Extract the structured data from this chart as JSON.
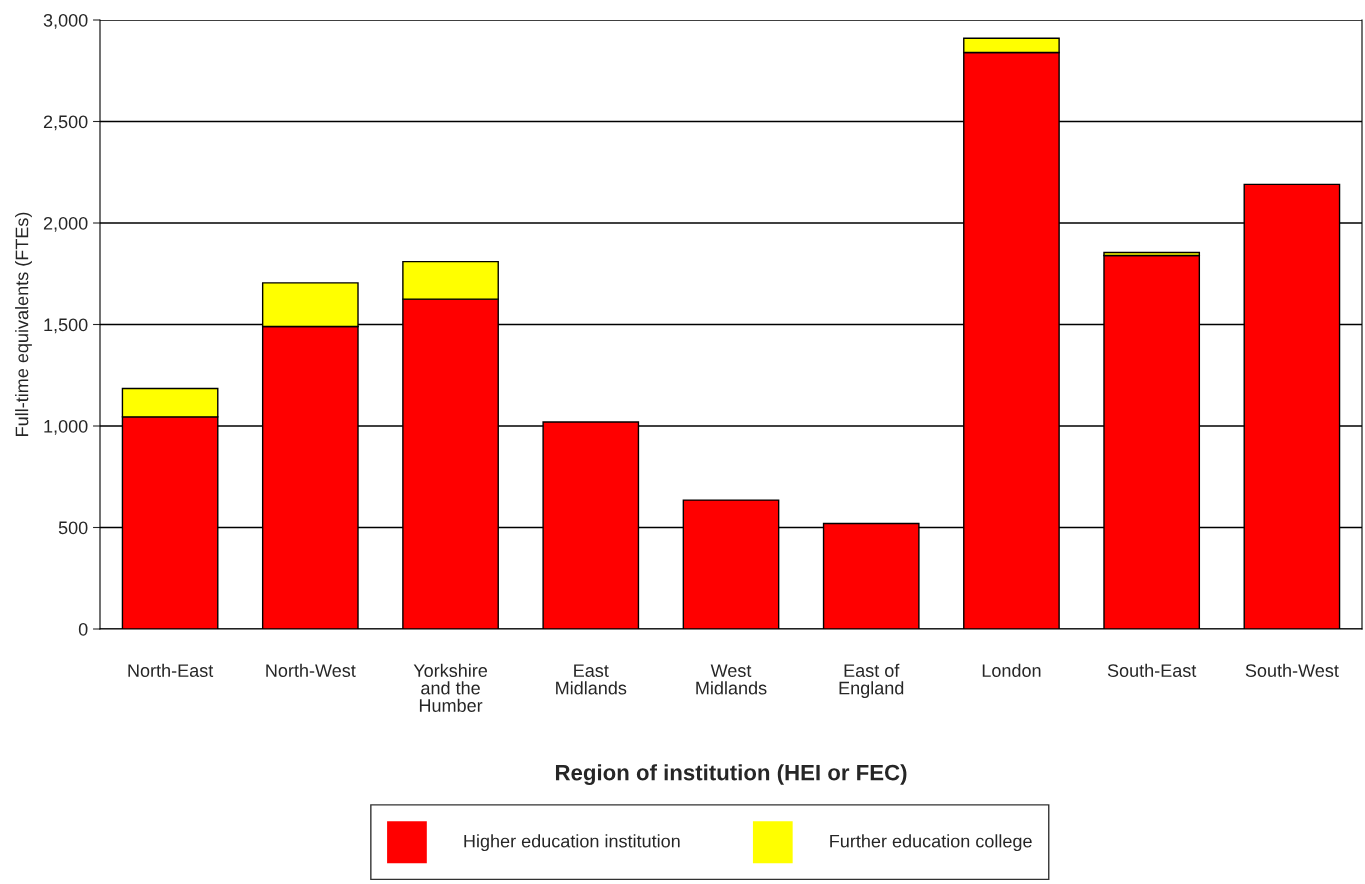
{
  "chart_data": {
    "type": "bar",
    "stacked": true,
    "xlabel": "Region of institution (HEI or FEC)",
    "ylabel": "Full-time equivalents (FTEs)",
    "categories": [
      "North-East",
      "North-West",
      "Yorkshire\nand the\nHumber",
      "East\nMidlands",
      "West\nMidlands",
      "East of\nEngland",
      "London",
      "South-East",
      "South-West"
    ],
    "series": [
      {
        "name": "Higher education institution",
        "color": "#ff0000",
        "values": [
          1045,
          1490,
          1625,
          1020,
          635,
          520,
          2840,
          1840,
          2190
        ]
      },
      {
        "name": "Further education college",
        "color": "#ffff00",
        "values": [
          140,
          215,
          185,
          null,
          null,
          null,
          70,
          15,
          null
        ]
      }
    ],
    "ylim": [
      0,
      3000
    ],
    "yticks": [
      0,
      500,
      {
        "value": 1000,
        "label": "1,000"
      },
      {
        "value": 1500,
        "label": "1,500"
      },
      {
        "value": 2000,
        "label": "2,000"
      },
      {
        "value": 2500,
        "label": "2,500"
      },
      {
        "value": 3000,
        "label": "3,000"
      }
    ],
    "grid": "y",
    "legend": "bottom"
  }
}
